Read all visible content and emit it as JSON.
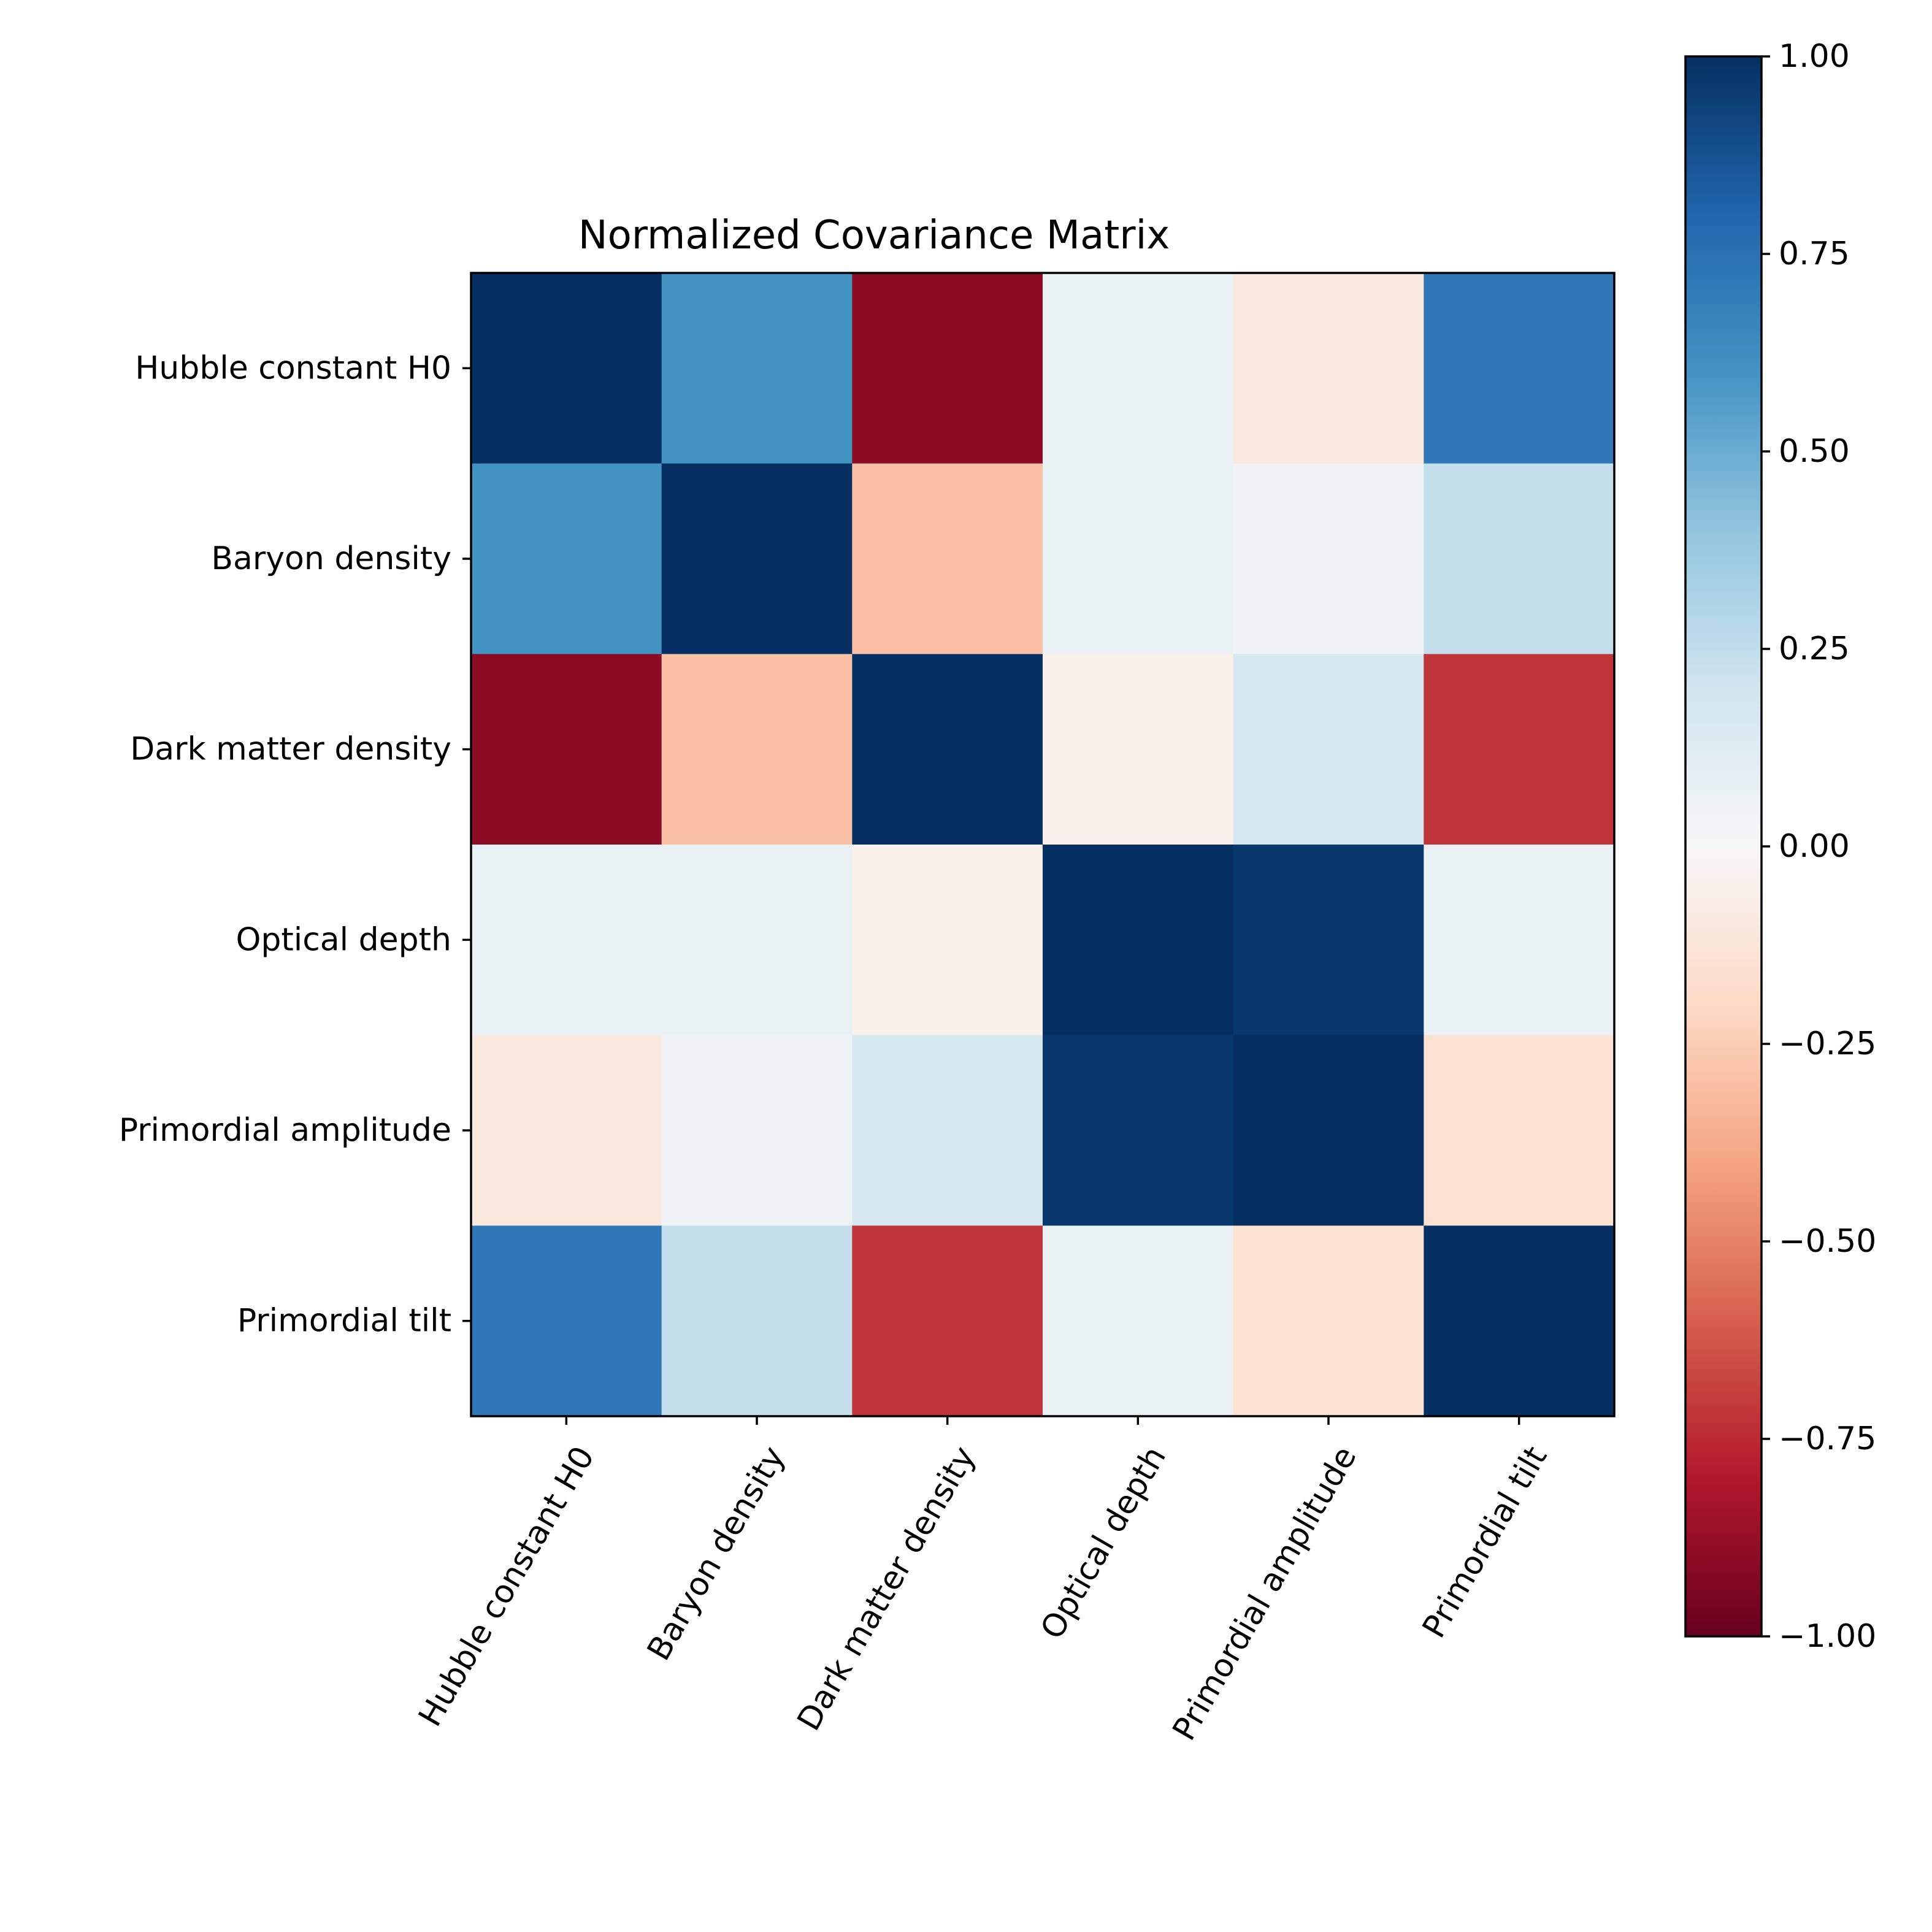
{
  "chart_data": {
    "type": "heatmap",
    "title": "Normalized Covariance Matrix",
    "x_labels": [
      "Hubble constant H0",
      "Baryon density",
      "Dark matter density",
      "Optical depth",
      "Primordial amplitude",
      "Primordial tilt"
    ],
    "y_labels": [
      "Hubble constant H0",
      "Baryon density",
      "Dark matter density",
      "Optical depth",
      "Primordial amplitude",
      "Primordial tilt"
    ],
    "values": [
      [
        1.0,
        0.6,
        -0.9,
        0.07,
        -0.1,
        0.72
      ],
      [
        0.6,
        1.0,
        -0.3,
        0.07,
        0.04,
        0.24
      ],
      [
        -0.9,
        -0.3,
        1.0,
        -0.05,
        0.17,
        -0.72
      ],
      [
        0.07,
        0.07,
        -0.05,
        1.0,
        0.97,
        0.07
      ],
      [
        -0.1,
        0.04,
        0.17,
        0.97,
        1.0,
        -0.15
      ],
      [
        0.72,
        0.24,
        -0.72,
        0.07,
        -0.15,
        1.0
      ]
    ],
    "colormap": "RdBu",
    "vmin": -1.0,
    "vmax": 1.0,
    "colorbar_ticks": [
      "1.00",
      "0.75",
      "0.50",
      "0.25",
      "0.00",
      "−0.25",
      "−0.50",
      "−0.75",
      "−1.00"
    ],
    "x_tick_rotation": "60 degrees"
  }
}
